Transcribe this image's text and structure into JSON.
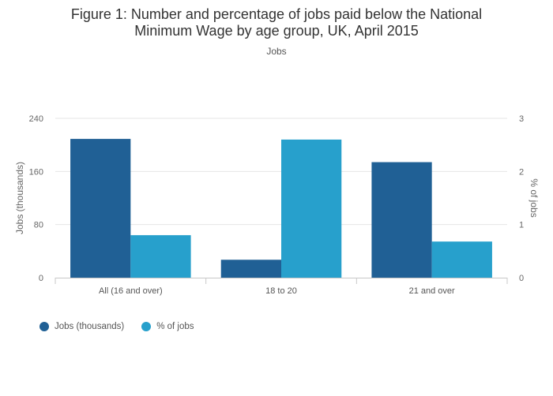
{
  "chart_data": {
    "type": "bar",
    "title_line1": "Figure 1: Number and percentage of jobs paid below the National",
    "title_line2": "Minimum Wage by age group, UK, April 2015",
    "subtitle": "Jobs",
    "categories": [
      "All (16 and over)",
      "18 to 20",
      "21 and over"
    ],
    "series": [
      {
        "name": "Jobs (thousands)",
        "axis": "left",
        "color": "#206095",
        "values": [
          209,
          27,
          174
        ]
      },
      {
        "name": "% of jobs",
        "axis": "right",
        "color": "#27a0cc",
        "values": [
          0.8,
          2.6,
          0.68
        ]
      }
    ],
    "ylabel_left": "Jobs (thousands)",
    "ylabel_right": "% of jobs",
    "ylim_left": [
      0,
      240
    ],
    "ylim_right": [
      0,
      3
    ],
    "yticks_left": [
      "0",
      "80",
      "160",
      "240"
    ],
    "yticks_right": [
      "0",
      "1",
      "2",
      "3"
    ],
    "grid": true,
    "legend_position": "bottom-left"
  }
}
